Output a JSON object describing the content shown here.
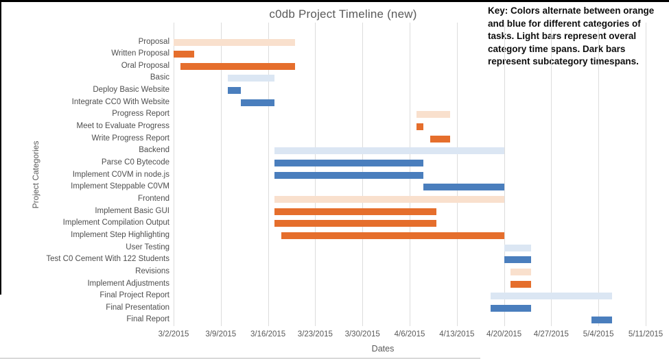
{
  "key_note": {
    "text": "Key: Colors alternate between orange and blue for different categories of tasks. Light bars represent overal category time spans. Dark bars represent subcategory timespans."
  },
  "chart_data": {
    "type": "bar",
    "subtype": "gantt",
    "title": "c0db Project Timeline (new)",
    "xlabel": "Dates",
    "ylabel": "Project Categories",
    "grid": true,
    "legend_position": "none",
    "x_range": [
      "3/2/2015",
      "5/11/2015"
    ],
    "x_ticks": [
      "3/2/2015",
      "3/9/2015",
      "3/16/2015",
      "3/23/2015",
      "3/30/2015",
      "4/6/2015",
      "4/13/2015",
      "4/20/2015",
      "4/27/2015",
      "5/4/2015",
      "5/11/2015"
    ],
    "colors": {
      "light_orange": "#F9E0CD",
      "dark_orange": "#E56E2C",
      "light_blue": "#DBE6F3",
      "dark_blue": "#4A7EBD",
      "gridline": "#DCDCDC",
      "axis_text": "#595959",
      "category_text": "#4D4D4D",
      "title_text": "#595959",
      "key_text": "#0D0D0D"
    },
    "tasks": [
      {
        "label": "Proposal",
        "start": "3/2/2015",
        "end": "3/20/2015",
        "variant": "light_orange"
      },
      {
        "label": "Written Proposal",
        "start": "3/2/2015",
        "end": "3/5/2015",
        "variant": "dark_orange"
      },
      {
        "label": "Oral Proposal",
        "start": "3/3/2015",
        "end": "3/20/2015",
        "variant": "dark_orange"
      },
      {
        "label": "Basic",
        "start": "3/10/2015",
        "end": "3/17/2015",
        "variant": "light_blue"
      },
      {
        "label": "Deploy Basic Website",
        "start": "3/10/2015",
        "end": "3/12/2015",
        "variant": "dark_blue"
      },
      {
        "label": "Integrate CC0 With Website",
        "start": "3/12/2015",
        "end": "3/17/2015",
        "variant": "dark_blue"
      },
      {
        "label": "Progress Report",
        "start": "4/7/2015",
        "end": "4/12/2015",
        "variant": "light_orange"
      },
      {
        "label": "Meet to Evaluate Progress",
        "start": "4/7/2015",
        "end": "4/8/2015",
        "variant": "dark_orange"
      },
      {
        "label": "Write Progress Report",
        "start": "4/9/2015",
        "end": "4/12/2015",
        "variant": "dark_orange"
      },
      {
        "label": "Backend",
        "start": "3/17/2015",
        "end": "4/20/2015",
        "variant": "light_blue"
      },
      {
        "label": "Parse C0 Bytecode",
        "start": "3/17/2015",
        "end": "4/8/2015",
        "variant": "dark_blue"
      },
      {
        "label": "Implement C0VM in node.js",
        "start": "3/17/2015",
        "end": "4/8/2015",
        "variant": "dark_blue"
      },
      {
        "label": "Implement Steppable C0VM",
        "start": "4/8/2015",
        "end": "4/20/2015",
        "variant": "dark_blue"
      },
      {
        "label": "Frontend",
        "start": "3/17/2015",
        "end": "4/20/2015",
        "variant": "light_orange"
      },
      {
        "label": "Implement Basic GUI",
        "start": "3/17/2015",
        "end": "4/10/2015",
        "variant": "dark_orange"
      },
      {
        "label": "Implement Compilation Output",
        "start": "3/17/2015",
        "end": "4/10/2015",
        "variant": "dark_orange"
      },
      {
        "label": "Implement Step Highlighting",
        "start": "3/18/2015",
        "end": "4/20/2015",
        "variant": "dark_orange"
      },
      {
        "label": "User Testing",
        "start": "4/20/2015",
        "end": "4/24/2015",
        "variant": "light_blue"
      },
      {
        "label": "Test C0 Cement With 122 Students",
        "start": "4/20/2015",
        "end": "4/24/2015",
        "variant": "dark_blue"
      },
      {
        "label": "Revisions",
        "start": "4/21/2015",
        "end": "4/24/2015",
        "variant": "light_orange"
      },
      {
        "label": "Implement Adjustments",
        "start": "4/21/2015",
        "end": "4/24/2015",
        "variant": "dark_orange"
      },
      {
        "label": "Final Project Report",
        "start": "4/18/2015",
        "end": "5/6/2015",
        "variant": "light_blue"
      },
      {
        "label": "Final Presentation",
        "start": "4/18/2015",
        "end": "4/24/2015",
        "variant": "dark_blue"
      },
      {
        "label": "Final Report",
        "start": "5/3/2015",
        "end": "5/6/2015",
        "variant": "dark_blue"
      }
    ]
  }
}
